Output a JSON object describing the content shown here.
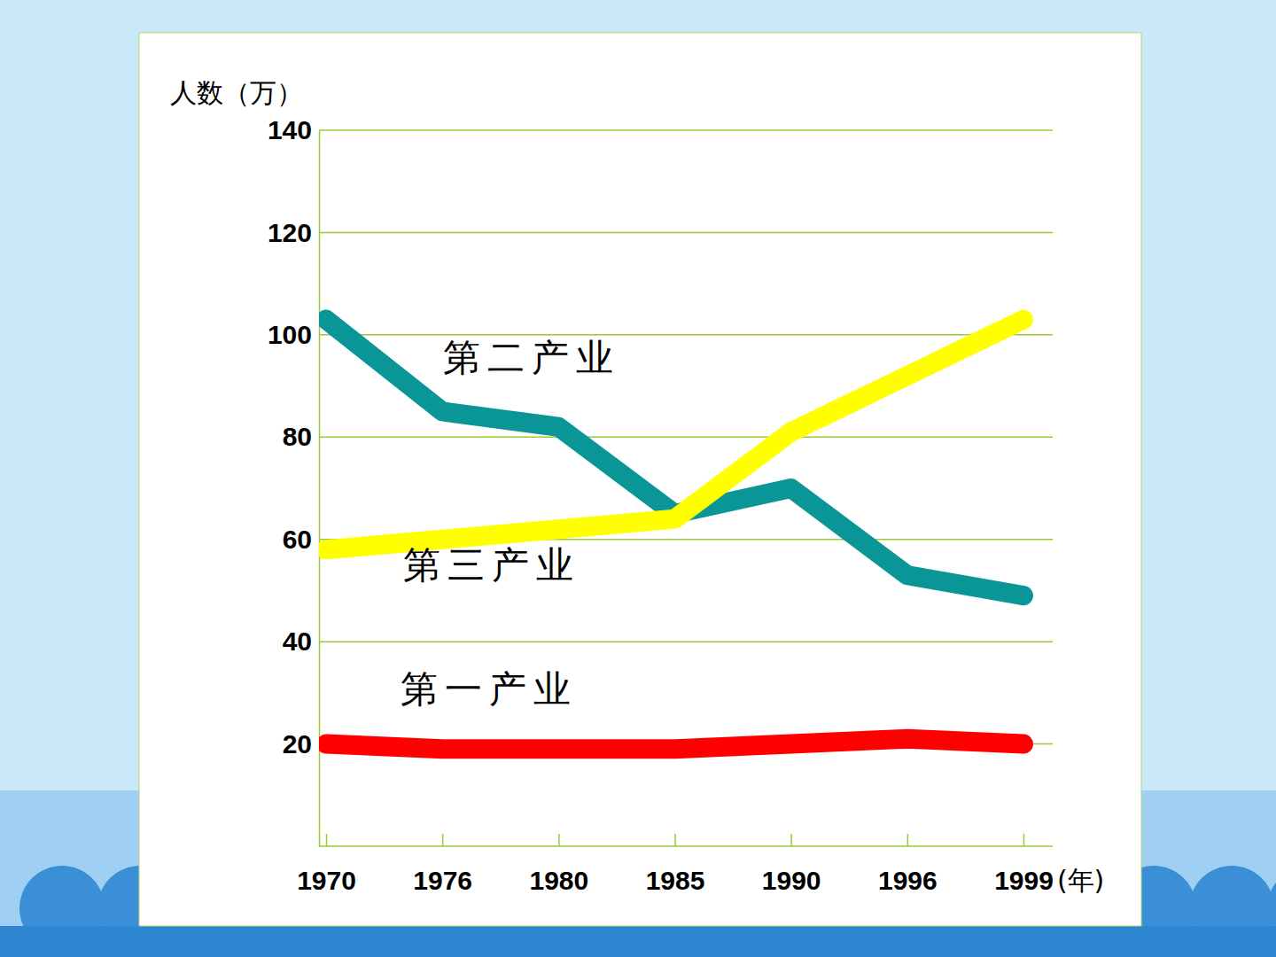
{
  "chart_data": {
    "type": "line",
    "y_label": "人数（万）",
    "x_label": "(年)",
    "categories": [
      "1970",
      "1976",
      "1980",
      "1985",
      "1990",
      "1996",
      "1999"
    ],
    "series": [
      {
        "name": "第二产业",
        "color": "#0a9696",
        "values": [
          103,
          85,
          82,
          65,
          70,
          53,
          49
        ]
      },
      {
        "name": "第三产业",
        "color": "#ffff00",
        "values": [
          58,
          60,
          62,
          64,
          81,
          92,
          103
        ]
      },
      {
        "name": "第一产业",
        "color": "#ff0000",
        "values": [
          20,
          19,
          19,
          19,
          20,
          21,
          20
        ]
      }
    ],
    "ylim": [
      0,
      140
    ],
    "yticks": [
      20,
      40,
      60,
      80,
      100,
      120,
      140
    ],
    "grid": true
  }
}
